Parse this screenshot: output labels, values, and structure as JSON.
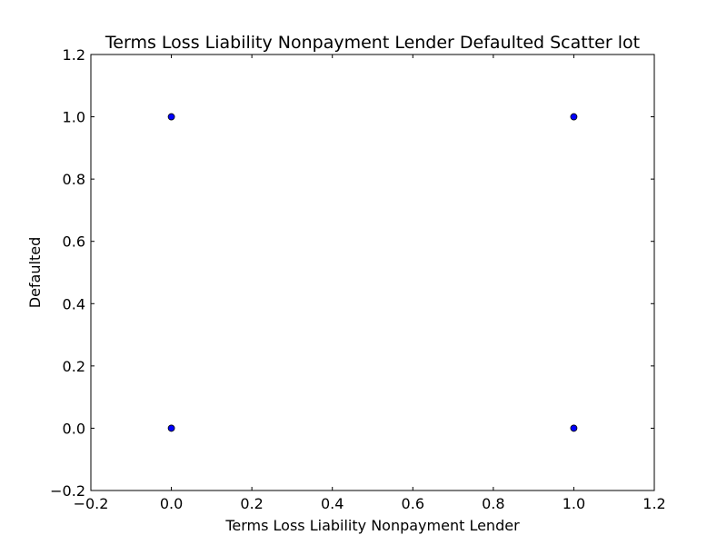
{
  "chart_data": {
    "type": "scatter",
    "title": "Terms Loss Liability Nonpayment Lender Defaulted Scatter lot",
    "xlabel": "Terms Loss Liability Nonpayment Lender",
    "ylabel": "Defaulted",
    "xlim": [
      -0.2,
      1.2
    ],
    "ylim": [
      -0.2,
      1.2
    ],
    "x_ticks": [
      "−0.2",
      "0.0",
      "0.2",
      "0.4",
      "0.6",
      "0.8",
      "1.0",
      "1.2"
    ],
    "y_ticks": [
      "−0.2",
      "0.0",
      "0.2",
      "0.4",
      "0.6",
      "0.8",
      "1.0",
      "1.2"
    ],
    "grid": false,
    "legend": "none",
    "series": [
      {
        "color": "#0000ff",
        "x": [
          0,
          0,
          1,
          1
        ],
        "y": [
          0,
          1,
          0,
          1
        ]
      }
    ]
  }
}
